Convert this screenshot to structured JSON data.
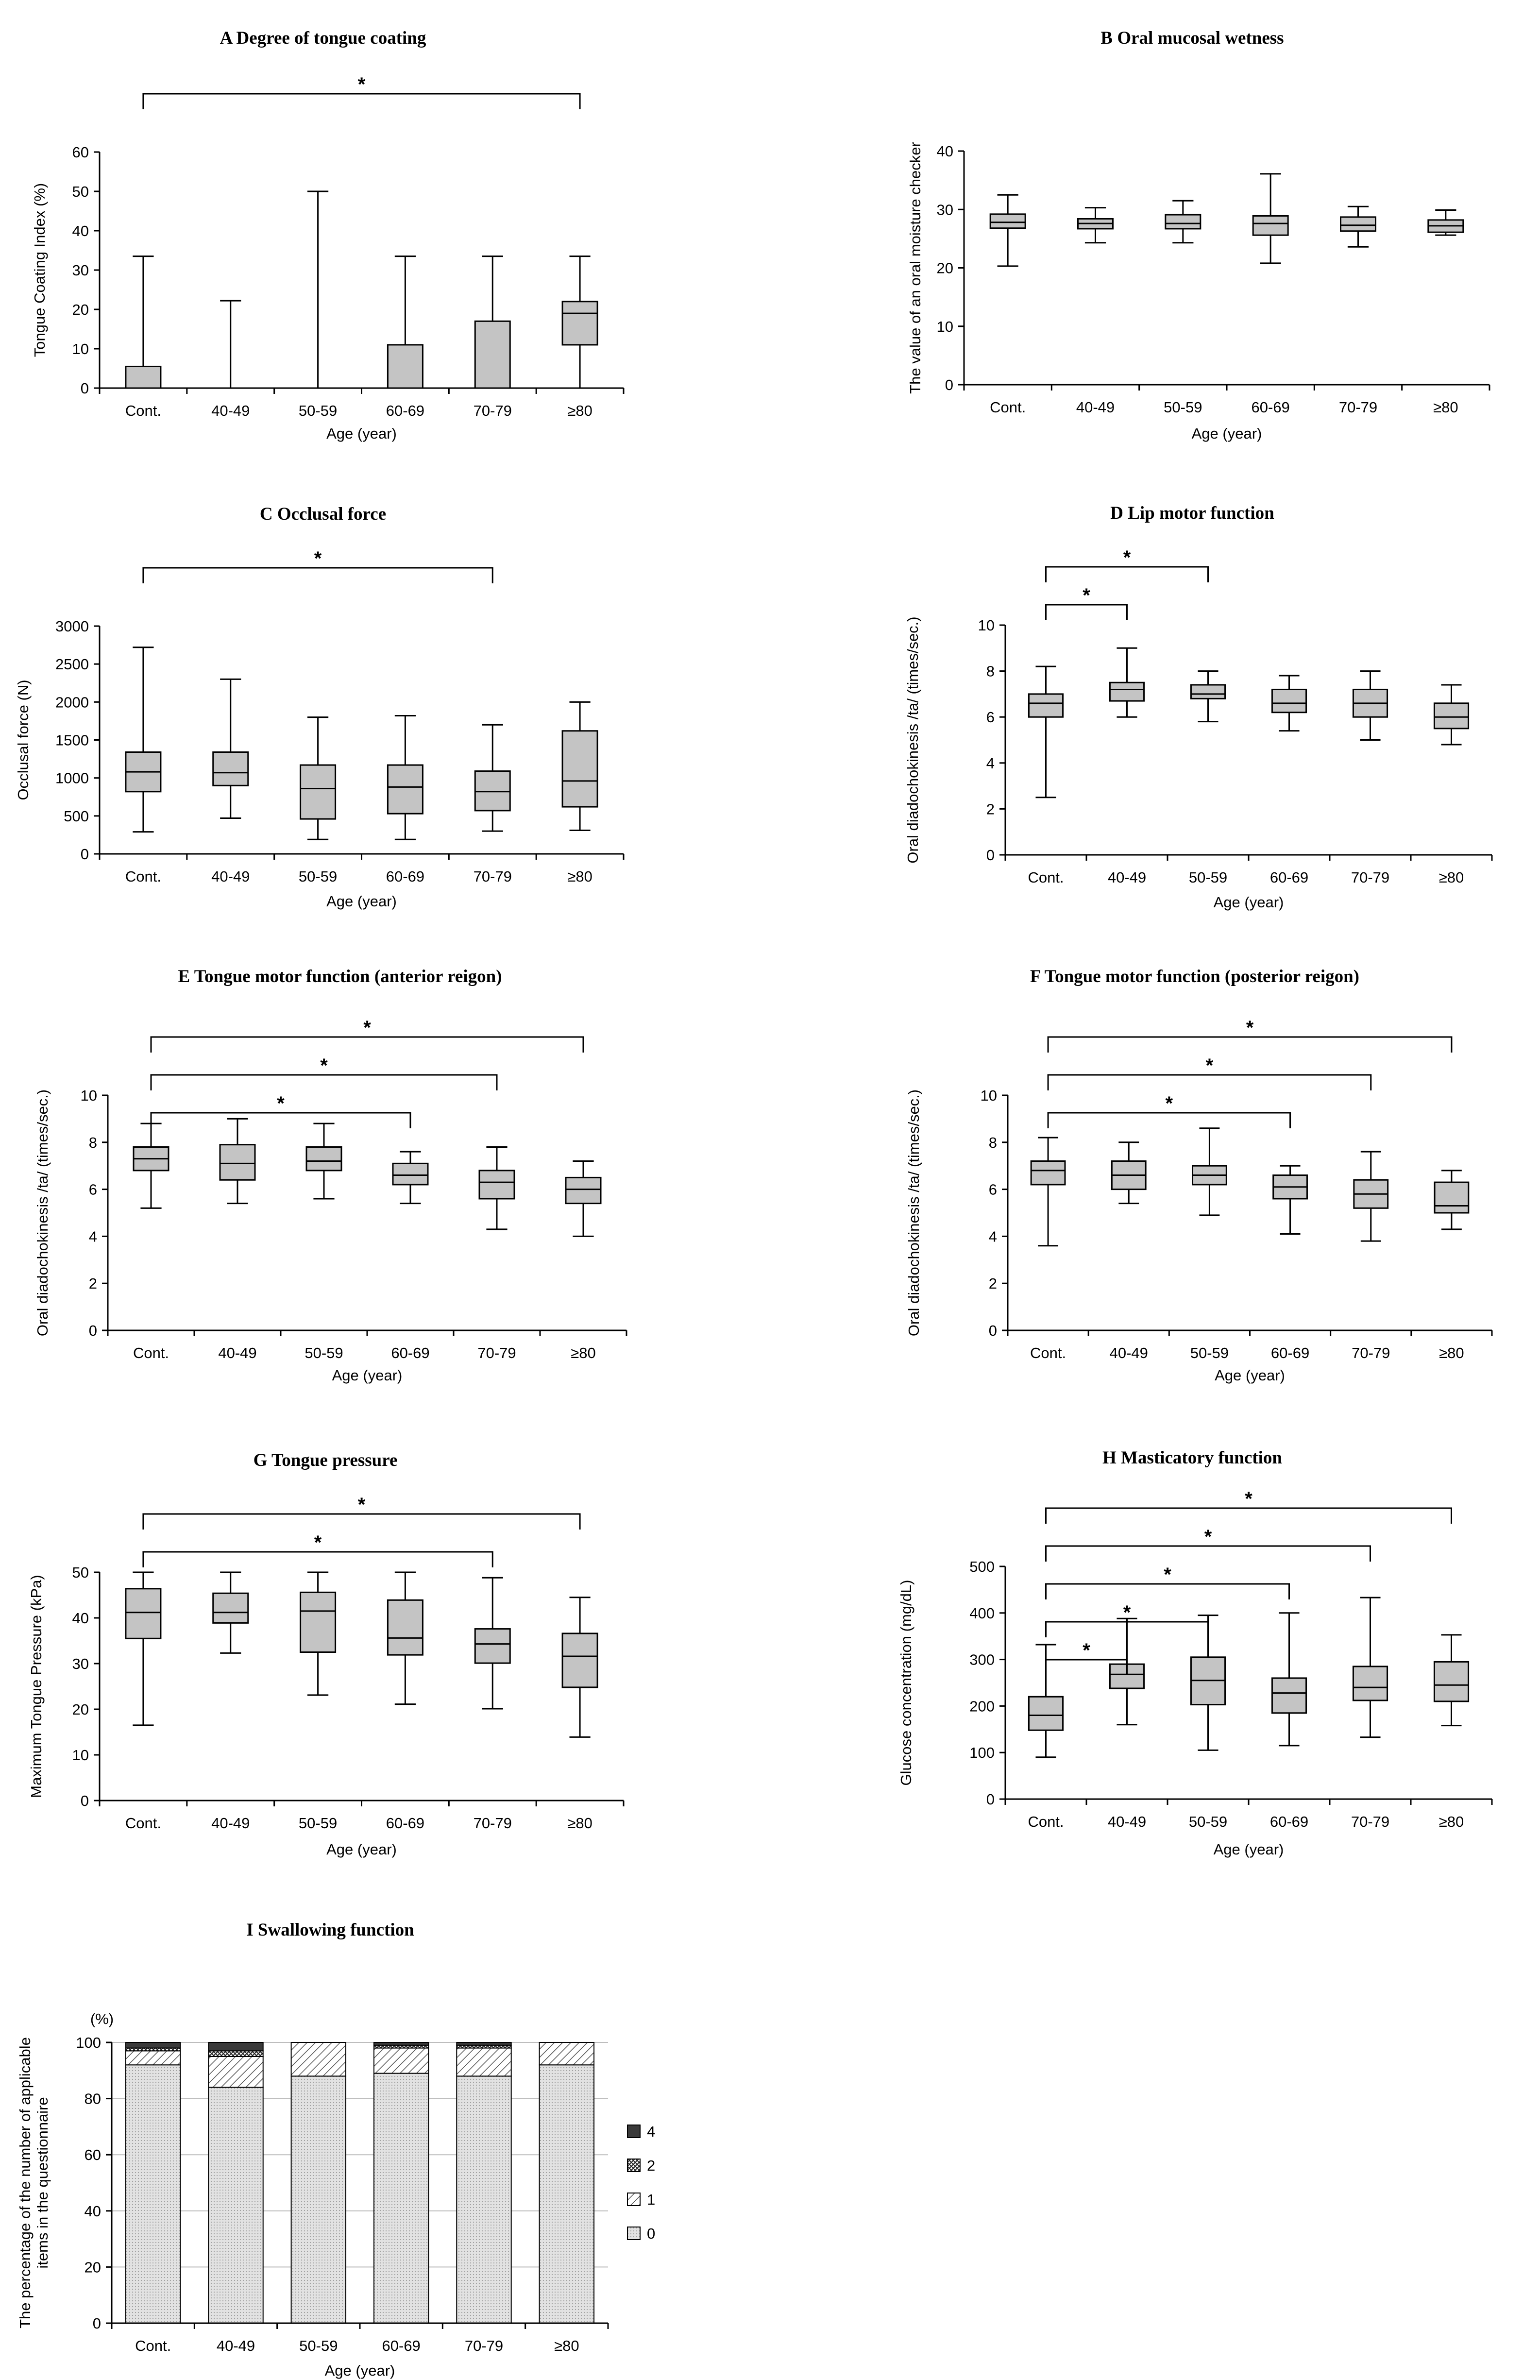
{
  "chart_data": [
    {
      "id": "A",
      "type": "box",
      "title": "A Degree of tongue coating",
      "xlabel": "Age (year)",
      "ylabel": "Tongue Coating Index (%)",
      "categories": [
        "Cont.",
        "40-49",
        "50-59",
        "60-69",
        "70-79",
        "≥80"
      ],
      "ylim": [
        0,
        60
      ],
      "yticks": [
        0,
        10,
        20,
        30,
        40,
        50,
        60
      ],
      "boxes": [
        {
          "min": 0,
          "q1": 0,
          "median": 0,
          "q3": 5.5,
          "max": 33.5
        },
        {
          "min": 0,
          "q1": 0,
          "median": 0,
          "q3": 0,
          "max": 22.2
        },
        {
          "min": 0,
          "q1": 0,
          "median": 0,
          "q3": 0,
          "max": 50
        },
        {
          "min": 0,
          "q1": 0,
          "median": 0,
          "q3": 11,
          "max": 33.5
        },
        {
          "min": 0,
          "q1": 0,
          "median": 0,
          "q3": 17,
          "max": 33.5
        },
        {
          "min": 0,
          "q1": 11,
          "median": 19,
          "q3": 22,
          "max": 33.5
        }
      ],
      "significance": [
        {
          "from": 0,
          "to": 5,
          "label": "*"
        }
      ]
    },
    {
      "id": "B",
      "type": "box",
      "title": "B Oral mucosal wetness",
      "xlabel": "Age (year)",
      "ylabel": "The value of an oral moisture checker",
      "categories": [
        "Cont.",
        "40-49",
        "50-59",
        "60-69",
        "70-79",
        "≥80"
      ],
      "ylim": [
        0,
        40
      ],
      "yticks": [
        0,
        10,
        20,
        30,
        40
      ],
      "boxes": [
        {
          "min": 20.3,
          "q1": 26.8,
          "median": 27.8,
          "q3": 29.2,
          "max": 32.5
        },
        {
          "min": 24.3,
          "q1": 26.7,
          "median": 27.6,
          "q3": 28.4,
          "max": 30.3
        },
        {
          "min": 24.3,
          "q1": 26.7,
          "median": 27.6,
          "q3": 29.1,
          "max": 31.5
        },
        {
          "min": 20.8,
          "q1": 25.6,
          "median": 27.6,
          "q3": 28.9,
          "max": 36.1
        },
        {
          "min": 23.6,
          "q1": 26.3,
          "median": 27.3,
          "q3": 28.7,
          "max": 30.5
        },
        {
          "min": 25.6,
          "q1": 26.1,
          "median": 27.2,
          "q3": 28.2,
          "max": 29.9
        }
      ],
      "significance": []
    },
    {
      "id": "C",
      "type": "box",
      "title": "C Occlusal force",
      "xlabel": "Age (year)",
      "ylabel": "Occlusal force (N)",
      "categories": [
        "Cont.",
        "40-49",
        "50-59",
        "60-69",
        "70-79",
        "≥80"
      ],
      "ylim": [
        0,
        3000
      ],
      "yticks": [
        0,
        500,
        1000,
        1500,
        2000,
        2500,
        3000
      ],
      "boxes": [
        {
          "min": 290,
          "q1": 820,
          "median": 1080,
          "q3": 1340,
          "max": 2720
        },
        {
          "min": 470,
          "q1": 900,
          "median": 1070,
          "q3": 1340,
          "max": 2300
        },
        {
          "min": 190,
          "q1": 460,
          "median": 860,
          "q3": 1170,
          "max": 1800
        },
        {
          "min": 190,
          "q1": 530,
          "median": 880,
          "q3": 1170,
          "max": 1820
        },
        {
          "min": 300,
          "q1": 570,
          "median": 820,
          "q3": 1090,
          "max": 1700
        },
        {
          "min": 310,
          "q1": 620,
          "median": 960,
          "q3": 1620,
          "max": 2000
        }
      ],
      "significance": [
        {
          "from": 0,
          "to": 4,
          "label": "*"
        }
      ]
    },
    {
      "id": "D",
      "type": "box",
      "title": "D Lip motor function",
      "xlabel": "Age (year)",
      "ylabel": "Oral diadochokinesis /ta/ (times/sec.)",
      "categories": [
        "Cont.",
        "40-49",
        "50-59",
        "60-69",
        "70-79",
        "≥80"
      ],
      "ylim": [
        0,
        10
      ],
      "yticks": [
        0,
        2,
        4,
        6,
        8,
        10
      ],
      "boxes": [
        {
          "min": 2.5,
          "q1": 6.0,
          "median": 6.6,
          "q3": 7.0,
          "max": 8.2
        },
        {
          "min": 6.0,
          "q1": 6.7,
          "median": 7.2,
          "q3": 7.5,
          "max": 9.0
        },
        {
          "min": 5.8,
          "q1": 6.8,
          "median": 7.0,
          "q3": 7.4,
          "max": 8.0
        },
        {
          "min": 5.4,
          "q1": 6.2,
          "median": 6.6,
          "q3": 7.2,
          "max": 7.8
        },
        {
          "min": 5.0,
          "q1": 6.0,
          "median": 6.6,
          "q3": 7.2,
          "max": 8.0
        },
        {
          "min": 4.8,
          "q1": 5.5,
          "median": 6.0,
          "q3": 6.6,
          "max": 7.4
        }
      ],
      "significance": [
        {
          "from": 0,
          "to": 1,
          "label": "*"
        },
        {
          "from": 0,
          "to": 2,
          "label": "*"
        }
      ]
    },
    {
      "id": "E",
      "type": "box",
      "title": "E Tongue motor function (anterior reigon)",
      "xlabel": "Age (year)",
      "ylabel": "Oral diadochokinesis /ta/ (times/sec.)",
      "categories": [
        "Cont.",
        "40-49",
        "50-59",
        "60-69",
        "70-79",
        "≥80"
      ],
      "ylim": [
        0,
        10
      ],
      "yticks": [
        0,
        2,
        4,
        6,
        8,
        10
      ],
      "boxes": [
        {
          "min": 5.2,
          "q1": 6.8,
          "median": 7.3,
          "q3": 7.8,
          "max": 8.8
        },
        {
          "min": 5.4,
          "q1": 6.4,
          "median": 7.1,
          "q3": 7.9,
          "max": 9.0
        },
        {
          "min": 5.6,
          "q1": 6.8,
          "median": 7.2,
          "q3": 7.8,
          "max": 8.8
        },
        {
          "min": 5.4,
          "q1": 6.2,
          "median": 6.6,
          "q3": 7.1,
          "max": 7.6
        },
        {
          "min": 4.3,
          "q1": 5.6,
          "median": 6.3,
          "q3": 6.8,
          "max": 7.8
        },
        {
          "min": 4.0,
          "q1": 5.4,
          "median": 6.0,
          "q3": 6.5,
          "max": 7.2
        }
      ],
      "significance": [
        {
          "from": 0,
          "to": 5,
          "label": "*"
        },
        {
          "from": 0,
          "to": 4,
          "label": "*"
        },
        {
          "from": 0,
          "to": 3,
          "label": "*"
        }
      ]
    },
    {
      "id": "F",
      "type": "box",
      "title": "F Tongue motor function (posterior reigon)",
      "xlabel": "Age (year)",
      "ylabel": "Oral diadochokinesis /ta/ (times/sec.)",
      "categories": [
        "Cont.",
        "40-49",
        "50-59",
        "60-69",
        "70-79",
        "≥80"
      ],
      "ylim": [
        0,
        10
      ],
      "yticks": [
        0,
        2,
        4,
        6,
        8,
        10
      ],
      "boxes": [
        {
          "min": 3.6,
          "q1": 6.2,
          "median": 6.8,
          "q3": 7.2,
          "max": 8.2
        },
        {
          "min": 5.4,
          "q1": 6.0,
          "median": 6.6,
          "q3": 7.2,
          "max": 8.0
        },
        {
          "min": 4.9,
          "q1": 6.2,
          "median": 6.6,
          "q3": 7.0,
          "max": 8.6
        },
        {
          "min": 4.1,
          "q1": 5.6,
          "median": 6.1,
          "q3": 6.6,
          "max": 7.0
        },
        {
          "min": 3.8,
          "q1": 5.2,
          "median": 5.8,
          "q3": 6.4,
          "max": 7.6
        },
        {
          "min": 4.3,
          "q1": 5.0,
          "median": 5.3,
          "q3": 6.3,
          "max": 6.8
        }
      ],
      "significance": [
        {
          "from": 0,
          "to": 5,
          "label": "*"
        },
        {
          "from": 0,
          "to": 4,
          "label": "*"
        },
        {
          "from": 0,
          "to": 3,
          "label": "*"
        }
      ]
    },
    {
      "id": "G",
      "type": "box",
      "title": "G Tongue pressure",
      "xlabel": "Age (year)",
      "ylabel": "Maximum Tongue Pressure (kPa)",
      "categories": [
        "Cont.",
        "40-49",
        "50-59",
        "60-69",
        "70-79",
        "≥80"
      ],
      "ylim": [
        0,
        50
      ],
      "yticks": [
        0,
        10,
        20,
        30,
        40,
        50
      ],
      "boxes": [
        {
          "min": 16.5,
          "q1": 35.5,
          "median": 41.2,
          "q3": 46.4,
          "max": 50
        },
        {
          "min": 32.3,
          "q1": 38.9,
          "median": 41.2,
          "q3": 45.4,
          "max": 50
        },
        {
          "min": 23.1,
          "q1": 32.5,
          "median": 41.5,
          "q3": 45.6,
          "max": 50
        },
        {
          "min": 21.1,
          "q1": 31.9,
          "median": 35.6,
          "q3": 43.9,
          "max": 50
        },
        {
          "min": 20.1,
          "q1": 30.1,
          "median": 34.3,
          "q3": 37.6,
          "max": 48.8
        },
        {
          "min": 13.9,
          "q1": 24.8,
          "median": 31.6,
          "q3": 36.6,
          "max": 44.5
        }
      ],
      "significance": [
        {
          "from": 0,
          "to": 5,
          "label": "*"
        },
        {
          "from": 0,
          "to": 4,
          "label": "*"
        }
      ]
    },
    {
      "id": "H",
      "type": "box",
      "title": "H Masticatory function",
      "xlabel": "Age (year)",
      "ylabel": "Glucose concentration (mg/dL)",
      "categories": [
        "Cont.",
        "40-49",
        "50-59",
        "60-69",
        "70-79",
        "≥80"
      ],
      "ylim": [
        0,
        500
      ],
      "yticks": [
        0,
        100,
        200,
        300,
        400,
        500
      ],
      "boxes": [
        {
          "min": 90,
          "q1": 148,
          "median": 180,
          "q3": 220,
          "max": 332
        },
        {
          "min": 160,
          "q1": 238,
          "median": 268,
          "q3": 290,
          "max": 388
        },
        {
          "min": 105,
          "q1": 203,
          "median": 255,
          "q3": 305,
          "max": 395
        },
        {
          "min": 115,
          "q1": 185,
          "median": 228,
          "q3": 260,
          "max": 400
        },
        {
          "min": 133,
          "q1": 212,
          "median": 240,
          "q3": 285,
          "max": 433
        },
        {
          "min": 158,
          "q1": 210,
          "median": 245,
          "q3": 295,
          "max": 353
        }
      ],
      "significance": [
        {
          "from": 0,
          "to": 5,
          "label": "*"
        },
        {
          "from": 0,
          "to": 4,
          "label": "*"
        },
        {
          "from": 0,
          "to": 3,
          "label": "*"
        },
        {
          "from": 0,
          "to": 2,
          "label": "*"
        },
        {
          "from": 0,
          "to": 1,
          "label": "*"
        }
      ]
    },
    {
      "id": "I",
      "type": "bar",
      "title": "I Swallowing function",
      "stacked": true,
      "xlabel": "Age (year)",
      "ylabel": "The percentage of the number of applicable items in the questionnaire",
      "unit_label": "(%)",
      "categories": [
        "Cont.",
        "40-49",
        "50-59",
        "60-69",
        "70-79",
        "≥80"
      ],
      "ylim": [
        0,
        100
      ],
      "yticks": [
        0,
        20,
        40,
        60,
        80,
        100
      ],
      "grid": true,
      "legend_position": "right",
      "series": [
        {
          "name": "0",
          "values": [
            92,
            84,
            88,
            89,
            88,
            92
          ]
        },
        {
          "name": "1",
          "values": [
            5,
            11,
            12,
            9,
            10,
            8
          ]
        },
        {
          "name": "2",
          "values": [
            1,
            2,
            0,
            1,
            1,
            0
          ]
        },
        {
          "name": "4",
          "values": [
            2,
            3,
            0,
            1,
            1,
            0
          ]
        }
      ]
    }
  ]
}
